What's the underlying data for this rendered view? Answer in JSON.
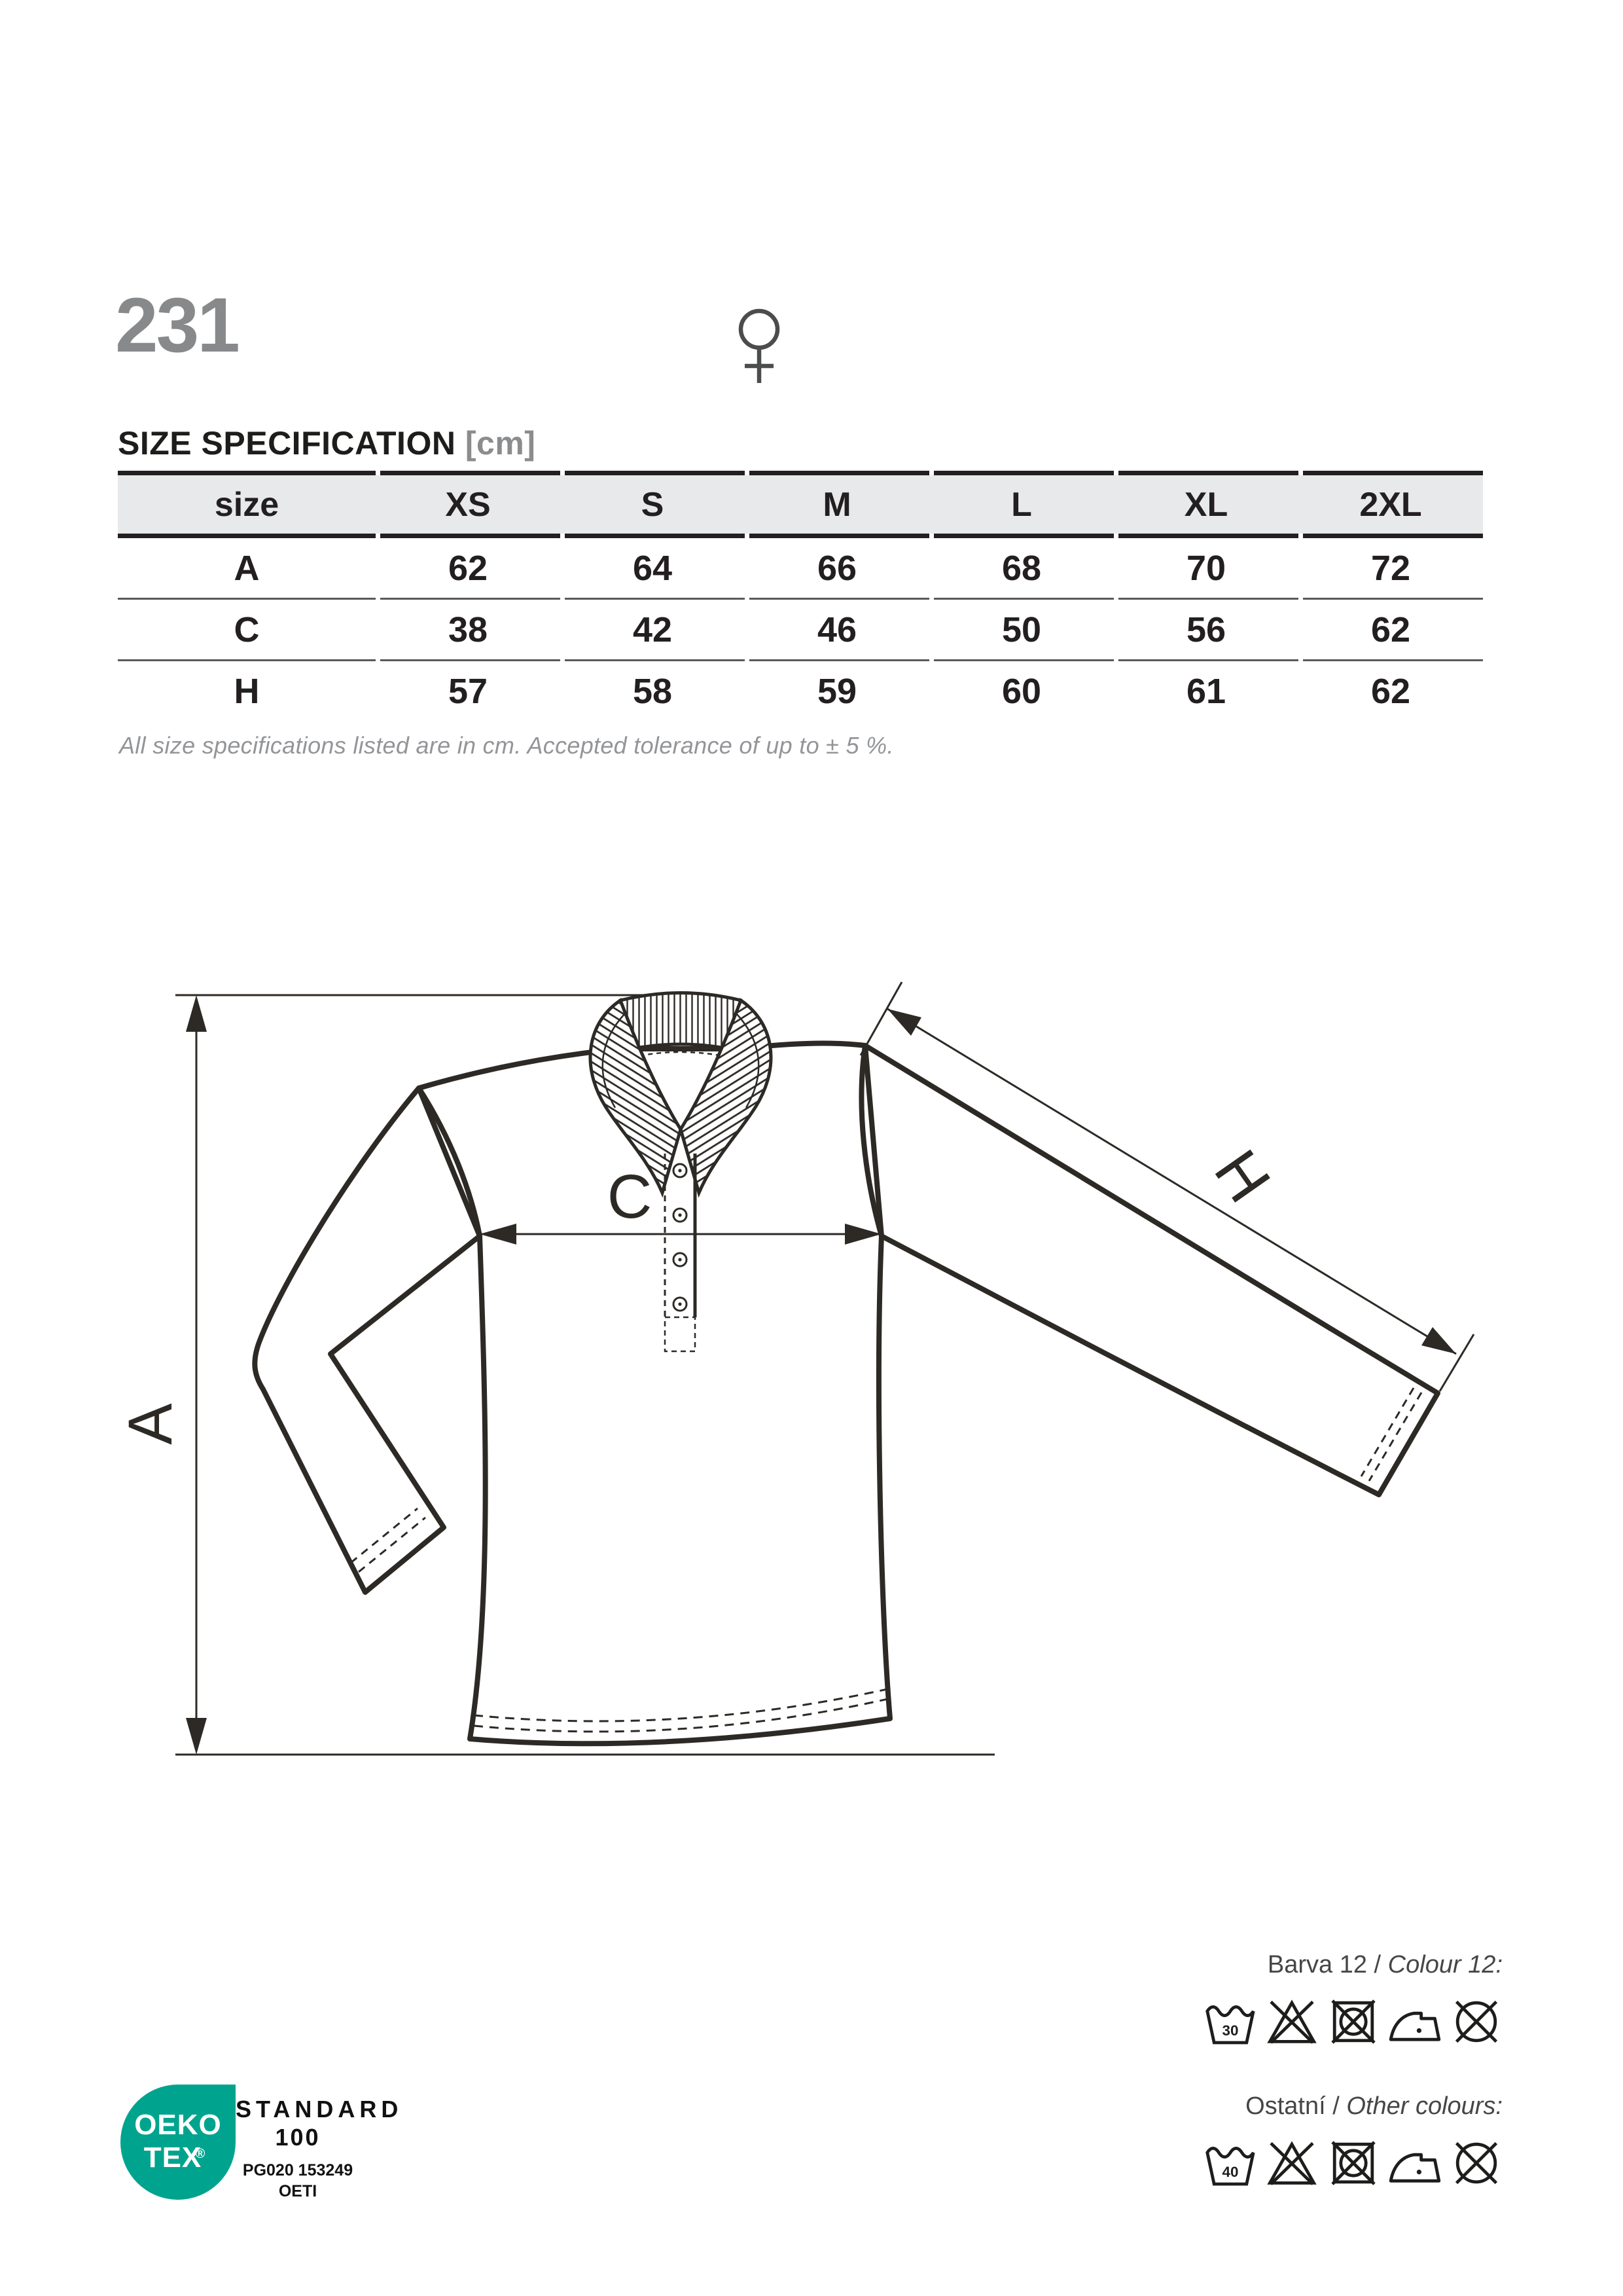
{
  "page": {
    "product_code": "231"
  },
  "colors": {
    "table_header_bg": "#e8e9ea",
    "table_border_dark": "#241f21",
    "table_border_thin": "#58595b",
    "muted_text": "#939598",
    "product_code_gray": "#87898b",
    "oeko_teal": "#00a48e"
  },
  "size_specification": {
    "title": "SIZE SPECIFICATION",
    "unit_label": "[cm]",
    "columns": [
      "size",
      "XS",
      "S",
      "M",
      "L",
      "XL",
      "2XL"
    ],
    "rows": [
      {
        "label": "A",
        "values": [
          "62",
          "64",
          "66",
          "68",
          "70",
          "72"
        ]
      },
      {
        "label": "C",
        "values": [
          "38",
          "42",
          "46",
          "50",
          "56",
          "62"
        ]
      },
      {
        "label": "H",
        "values": [
          "57",
          "58",
          "59",
          "60",
          "61",
          "62"
        ]
      }
    ],
    "note": "All size specifications listed are in cm. Accepted tolerance of up to ± 5 %."
  },
  "diagram": {
    "garment": "women's long sleeve polo shirt",
    "labels": {
      "total_length": "A",
      "chest_width": "C",
      "sleeve_length": "H"
    }
  },
  "care": {
    "colour12": {
      "label_cs": "Barva 12 / ",
      "label_en": "Colour 12:",
      "wash_temperature": "30",
      "icons": [
        "wash-30-icon",
        "do-not-bleach-icon",
        "do-not-tumble-dry-icon",
        "iron-one-dot-icon",
        "do-not-dry-clean-icon"
      ]
    },
    "other_colours": {
      "label_cs": "Ostatní / ",
      "label_en": "Other colours:",
      "wash_temperature": "40",
      "icons": [
        "wash-40-icon",
        "do-not-bleach-icon",
        "do-not-tumble-dry-icon",
        "iron-one-dot-icon",
        "do-not-dry-clean-icon"
      ]
    }
  },
  "certification": {
    "brand_top": "OEKO",
    "brand_bottom": "TEX",
    "registered_mark": "®",
    "standard_word": "STANDARD",
    "standard_number": "100",
    "license_code": "PG020 153249",
    "institute": "OETI"
  }
}
